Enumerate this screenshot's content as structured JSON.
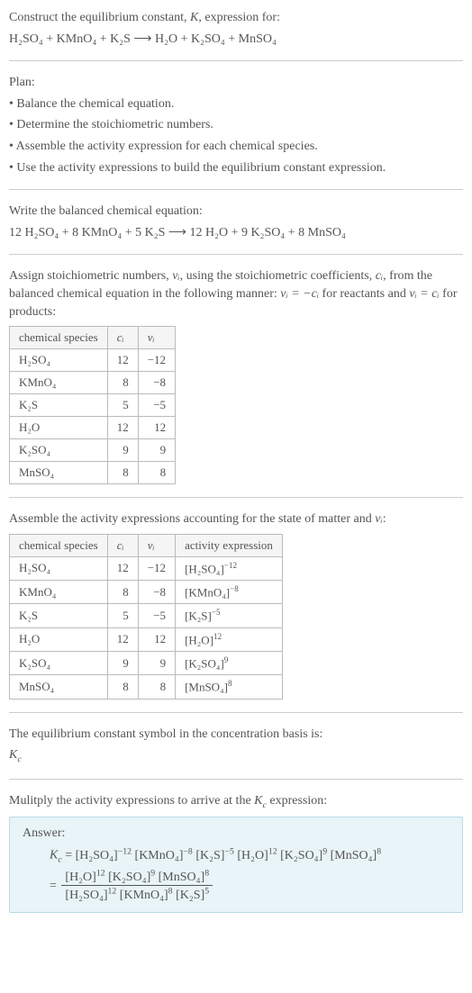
{
  "intro": {
    "line1": "Construct the equilibrium constant, ",
    "K": "K",
    "line1b": ", expression for:",
    "equation_left": "H₂SO₄ + KMnO₄ + K₂S",
    "arrow": "⟶",
    "equation_right": "H₂O + K₂SO₄ + MnSO₄"
  },
  "plan": {
    "title": "Plan:",
    "items": [
      "• Balance the chemical equation.",
      "• Determine the stoichiometric numbers.",
      "• Assemble the activity expression for each chemical species.",
      "• Use the activity expressions to build the equilibrium constant expression."
    ]
  },
  "balanced": {
    "title": "Write the balanced chemical equation:",
    "left": "12 H₂SO₄ + 8 KMnO₄ + 5 K₂S",
    "arrow": "⟶",
    "right": "12 H₂O + 9 K₂SO₄ + 8 MnSO₄"
  },
  "stoich": {
    "intro1": "Assign stoichiometric numbers, ",
    "vi": "νᵢ",
    "intro2": ", using the stoichiometric coefficients, ",
    "ci": "cᵢ",
    "intro3": ", from the balanced chemical equation in the following manner: ",
    "rel1": "νᵢ = −cᵢ",
    "intro4": " for reactants and ",
    "rel2": "νᵢ = cᵢ",
    "intro5": " for products:",
    "headers": [
      "chemical species",
      "cᵢ",
      "νᵢ"
    ],
    "rows": [
      {
        "sp": "H₂SO₄",
        "c": "12",
        "v": "−12"
      },
      {
        "sp": "KMnO₄",
        "c": "8",
        "v": "−8"
      },
      {
        "sp": "K₂S",
        "c": "5",
        "v": "−5"
      },
      {
        "sp": "H₂O",
        "c": "12",
        "v": "12"
      },
      {
        "sp": "K₂SO₄",
        "c": "9",
        "v": "9"
      },
      {
        "sp": "MnSO₄",
        "c": "8",
        "v": "8"
      }
    ]
  },
  "activity": {
    "intro": "Assemble the activity expressions accounting for the state of matter and ",
    "vi": "νᵢ",
    "colon": ":",
    "headers": [
      "chemical species",
      "cᵢ",
      "νᵢ",
      "activity expression"
    ],
    "rows": [
      {
        "sp": "H₂SO₄",
        "c": "12",
        "v": "−12",
        "base": "[H₂SO₄]",
        "exp": "−12"
      },
      {
        "sp": "KMnO₄",
        "c": "8",
        "v": "−8",
        "base": "[KMnO₄]",
        "exp": "−8"
      },
      {
        "sp": "K₂S",
        "c": "5",
        "v": "−5",
        "base": "[K₂S]",
        "exp": "−5"
      },
      {
        "sp": "H₂O",
        "c": "12",
        "v": "12",
        "base": "[H₂O]",
        "exp": "12"
      },
      {
        "sp": "K₂SO₄",
        "c": "9",
        "v": "9",
        "base": "[K₂SO₄]",
        "exp": "9"
      },
      {
        "sp": "MnSO₄",
        "c": "8",
        "v": "8",
        "base": "[MnSO₄]",
        "exp": "8"
      }
    ]
  },
  "symbol": {
    "line": "The equilibrium constant symbol in the concentration basis is:",
    "kc": "K",
    "kcs": "c"
  },
  "multiply": {
    "line1": "Mulitply the activity expressions to arrive at the ",
    "kc": "K",
    "kcs": "c",
    "line2": " expression:"
  },
  "answer": {
    "label": "Answer:",
    "kc": "K",
    "kcs": "c",
    "eq": " = ",
    "terms": [
      {
        "base": "[H₂SO₄]",
        "exp": "−12"
      },
      {
        "base": "[KMnO₄]",
        "exp": "−8"
      },
      {
        "base": "[K₂S]",
        "exp": "−5"
      },
      {
        "base": "[H₂O]",
        "exp": "12"
      },
      {
        "base": "[K₂SO₄]",
        "exp": "9"
      },
      {
        "base": "[MnSO₄]",
        "exp": "8"
      }
    ],
    "frac_num": [
      {
        "base": "[H₂O]",
        "exp": "12"
      },
      {
        "base": "[K₂SO₄]",
        "exp": "9"
      },
      {
        "base": "[MnSO₄]",
        "exp": "8"
      }
    ],
    "frac_den": [
      {
        "base": "[H₂SO₄]",
        "exp": "12"
      },
      {
        "base": "[KMnO₄]",
        "exp": "8"
      },
      {
        "base": "[K₂S]",
        "exp": "5"
      }
    ]
  },
  "colors": {
    "text": "#555555",
    "rule": "#cccccc",
    "table_border": "#bbbbbb",
    "answer_bg": "#e8f4f8",
    "answer_border": "#b8d8e8"
  },
  "fontsize_pt": 14
}
